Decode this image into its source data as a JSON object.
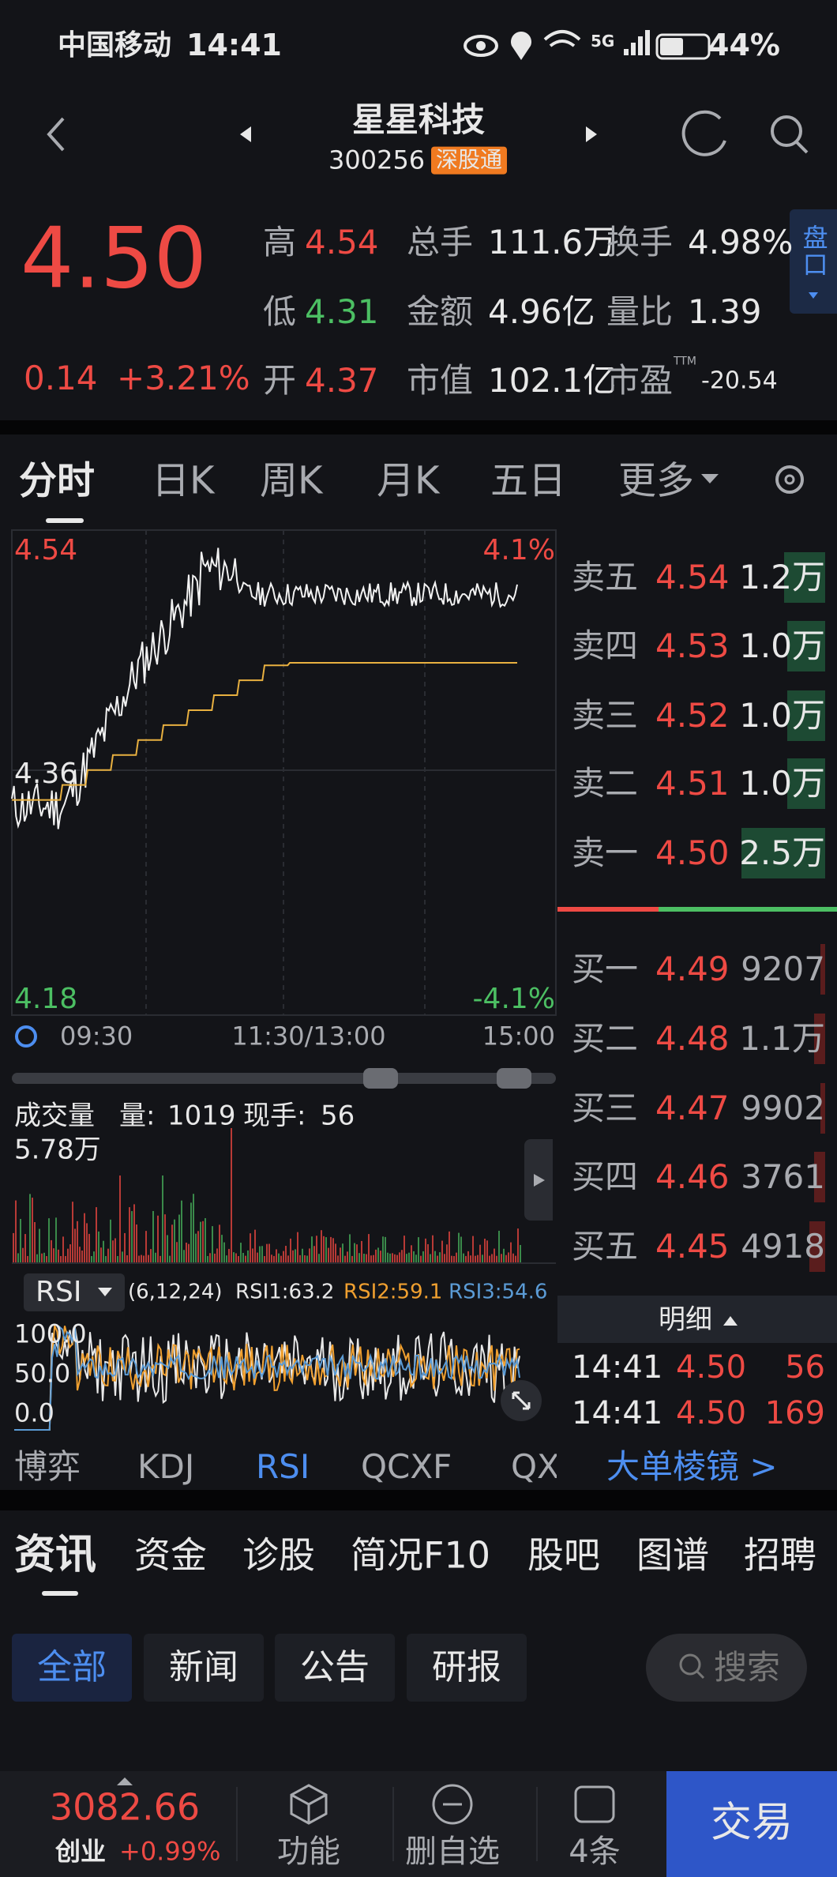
{
  "status_bar": {
    "carrier": "中国移动",
    "time": "14:41",
    "network": "5G",
    "battery": "44%"
  },
  "header": {
    "title": "星星科技",
    "code": "300256",
    "badge": "深股通",
    "side_tab": "盘口"
  },
  "quote": {
    "price": "4.50",
    "change": "0.14",
    "change_pct": "+3.21%",
    "fields": [
      {
        "label": "高",
        "value": "4.54"
      },
      {
        "label": "总手",
        "value": "111.6万"
      },
      {
        "label": "换手",
        "value": "4.98%"
      },
      {
        "label": "低",
        "value": "4.31"
      },
      {
        "label": "金额",
        "value": "4.96亿"
      },
      {
        "label": "量比",
        "value": "1.39"
      },
      {
        "label": "开",
        "value": "4.37"
      },
      {
        "label": "市值",
        "value": "102.1亿"
      },
      {
        "label": "市盈",
        "value": "-20.54",
        "sup": "TTM"
      }
    ]
  },
  "chart_tabs": [
    "分时",
    "日K",
    "周K",
    "月K",
    "五日",
    "更多"
  ],
  "chart": {
    "price_top": "4.54",
    "price_mid": "4.36",
    "price_bottom": "4.18",
    "pct_top": "4.1%",
    "pct_bottom": "-4.1%",
    "times": [
      "09:30",
      "11:30/13:00",
      "15:00"
    ],
    "volume": {
      "title": "成交量",
      "amount_label": "量:",
      "amount": "1019",
      "current_label": "现手:",
      "current": "56",
      "max": "5.78万"
    },
    "rsi": {
      "name": "RSI",
      "params": "(6,12,24)",
      "rsi1": "RSI1:63.2",
      "rsi2": "RSI2:59.1",
      "rsi3": "RSI3:54.6",
      "ticks": [
        "100.0",
        "50.0",
        "0.0"
      ]
    }
  },
  "order_book": {
    "asks": [
      {
        "label": "卖五",
        "price": "4.54",
        "volume": "1.2万"
      },
      {
        "label": "卖四",
        "price": "4.53",
        "volume": "1.0万"
      },
      {
        "label": "卖三",
        "price": "4.52",
        "volume": "1.0万"
      },
      {
        "label": "卖二",
        "price": "4.51",
        "volume": "1.0万"
      },
      {
        "label": "卖一",
        "price": "4.50",
        "volume": "2.5万"
      }
    ],
    "bids": [
      {
        "label": "买一",
        "price": "4.49",
        "volume": "9207"
      },
      {
        "label": "买二",
        "price": "4.48",
        "volume": "1.1万"
      },
      {
        "label": "买三",
        "price": "4.47",
        "volume": "9902"
      },
      {
        "label": "买四",
        "price": "4.46",
        "volume": "3761"
      },
      {
        "label": "买五",
        "price": "4.45",
        "volume": "4918"
      }
    ]
  },
  "detail": {
    "title": "明细",
    "rows": [
      [
        "14:41",
        "4.50",
        "56"
      ],
      [
        "14:41",
        "4.50",
        "169"
      ]
    ]
  },
  "indicator_tabs": [
    "博弈",
    "KDJ",
    "RSI",
    "QCXF",
    "QX"
  ],
  "big_order": "大单棱镜 >",
  "news_tabs": [
    "资讯",
    "资金",
    "诊股",
    "简况F10",
    "股吧",
    "图谱",
    "招聘"
  ],
  "filters": [
    "全部",
    "新闻",
    "公告",
    "研报"
  ],
  "search": "搜索",
  "bottom": {
    "index": "3082.66",
    "index_name": "创业",
    "index_change": "+0.99%",
    "buttons": [
      "功能",
      "删自选",
      "4条"
    ],
    "trade": "交易"
  }
}
